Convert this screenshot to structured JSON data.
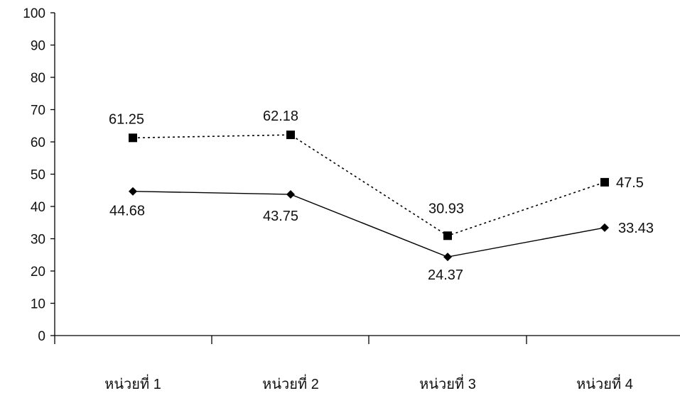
{
  "chart_data": {
    "type": "line",
    "title": "",
    "xlabel": "",
    "ylabel": "",
    "categories": [
      "หน่วยที่ 1",
      "หน่วยที่ 2",
      "หน่วยที่ 3",
      "หน่วยที่ 4"
    ],
    "ylim": [
      0,
      100
    ],
    "yticks": [
      "0",
      "10",
      "20",
      "30",
      "40",
      "50",
      "60",
      "70",
      "80",
      "90",
      "100"
    ],
    "grid": false,
    "legend": "none",
    "series": [
      {
        "values": [
          61.25,
          62.18,
          30.93,
          47.5
        ],
        "labels": [
          "61.25",
          "62.18",
          "30.93",
          "47.5"
        ],
        "line_style": "dotted",
        "marker": "square",
        "color": "#000000"
      },
      {
        "values": [
          44.68,
          43.75,
          24.37,
          33.43
        ],
        "labels": [
          "44.68",
          "43.75",
          "24.37",
          "33.43"
        ],
        "line_style": "solid",
        "marker": "diamond",
        "color": "#000000"
      }
    ]
  }
}
